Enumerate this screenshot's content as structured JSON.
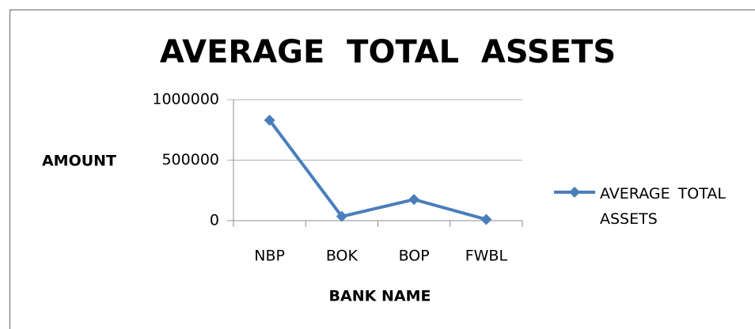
{
  "chart_data": {
    "type": "line",
    "title": "AVERAGE  TOTAL  ASSETS",
    "x_label": "BANK NAME",
    "y_label": "AMOUNT",
    "categories": [
      "NBP",
      "BOK",
      "BOP",
      "FWBL"
    ],
    "series": [
      {
        "name": "AVERAGE TOTAL ASSETS",
        "color": "#4a7ebb",
        "values": [
          830000,
          35000,
          175000,
          10000
        ]
      }
    ],
    "ylim": [
      0,
      1000000
    ],
    "yticks": [
      0,
      500000,
      1000000
    ],
    "grid": true,
    "legend": "right"
  }
}
